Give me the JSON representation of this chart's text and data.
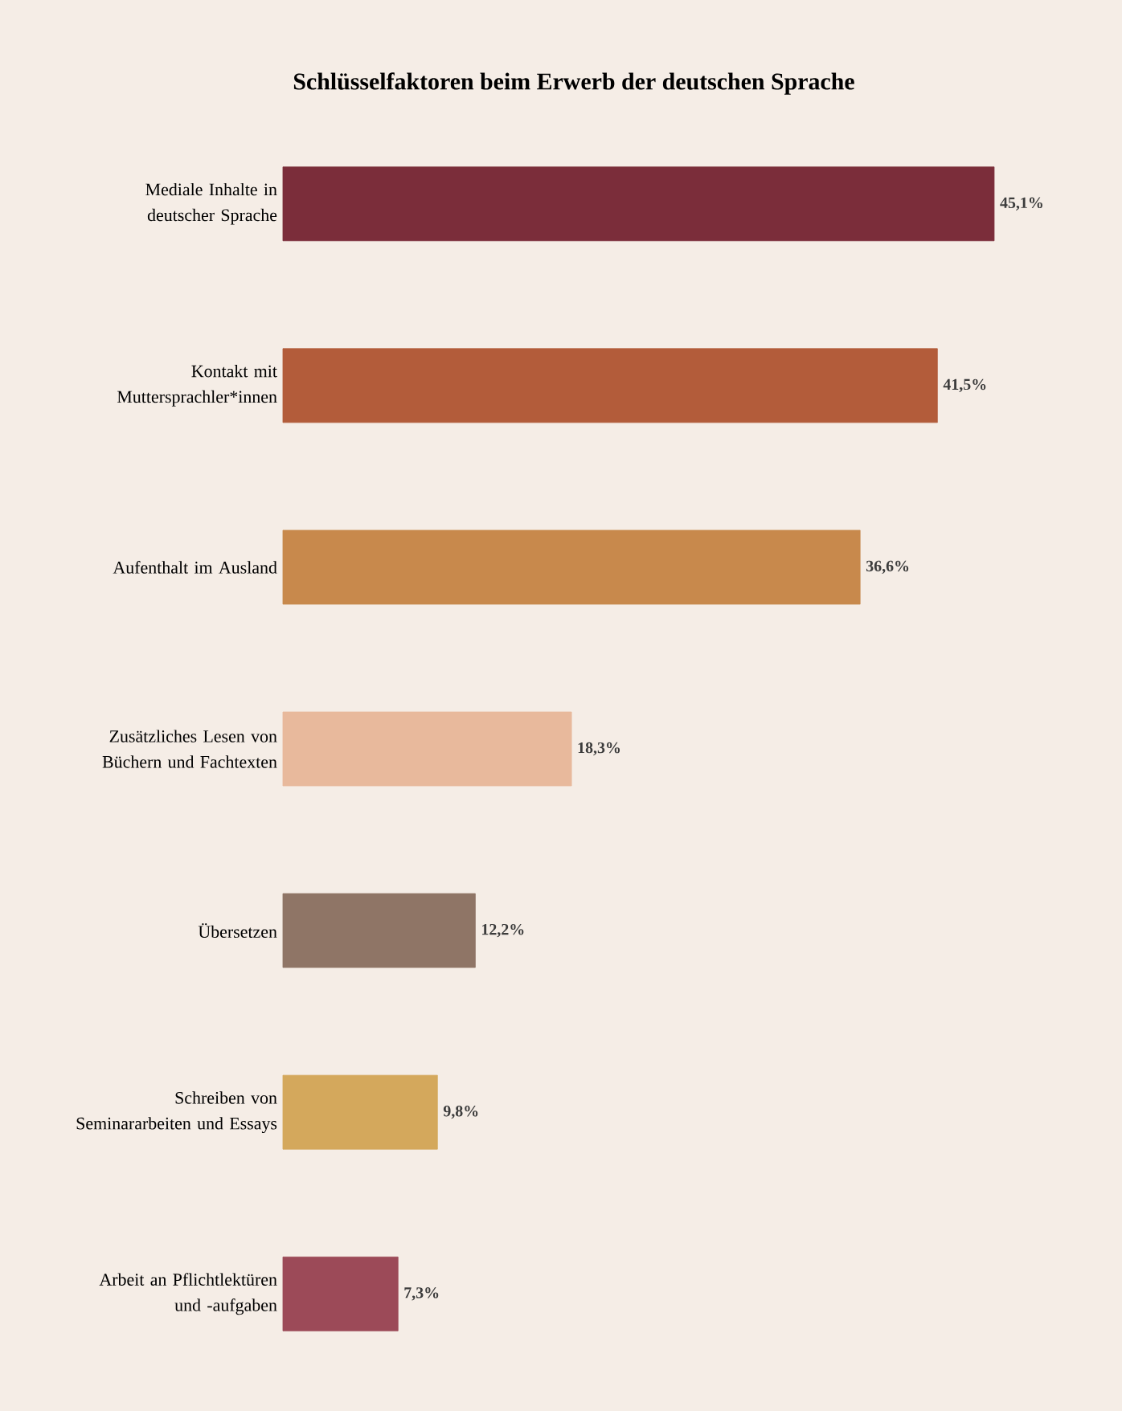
{
  "chart_data": {
    "type": "bar",
    "orientation": "horizontal",
    "title": "Schlüsselfaktoren beim Erwerb der deutschen Sprache",
    "categories": [
      "Mediale Inhalte in deutscher Sprache",
      "Kontakt mit Muttersprachler*innen",
      "Aufenthalt im Ausland",
      "Zusätzliches Lesen von Büchern und Fachtexten",
      "Übersetzen",
      "Schreiben von Seminararbeiten und Essays",
      "Arbeit an Pflichtlektüren und -aufgaben"
    ],
    "values": [
      45.1,
      41.5,
      36.6,
      18.3,
      12.2,
      9.8,
      7.3
    ],
    "colors": [
      "#7b2d3a",
      "#b35c3a",
      "#c8894c",
      "#e8b99c",
      "#8f7566",
      "#d4a85c",
      "#9c4a58"
    ],
    "value_labels": [
      "45,1%",
      "41,5%",
      "36,6%",
      "18,3%",
      "12,2%",
      "9,8%",
      "7,3%"
    ]
  }
}
